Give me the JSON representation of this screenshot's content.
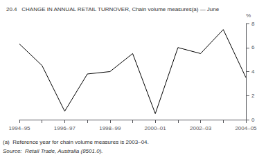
{
  "chart_data": {
    "type": "line",
    "title": "20.4   CHANGE IN ANNUAL RETAIL TURNOVER, Chain volume measures(a) — June",
    "categories": [
      "1994–95",
      null,
      "1996–97",
      null,
      "1998–99",
      null,
      "2000–01",
      null,
      "2002–03",
      null,
      "2004–05"
    ],
    "values": [
      6.3,
      4.5,
      0.7,
      3.8,
      4.0,
      5.5,
      0.5,
      6.0,
      5.5,
      7.5,
      3.5
    ],
    "color": "#000000",
    "ylabel": "%",
    "ylim": [
      0,
      8
    ],
    "yticks": [
      0,
      2,
      4,
      6,
      8
    ],
    "grid": false,
    "annotations": [
      "(a)  Reference year for chain volume measures is 2003–04.",
      "Source:  Retail Trade, Australia (8501.0)."
    ]
  }
}
